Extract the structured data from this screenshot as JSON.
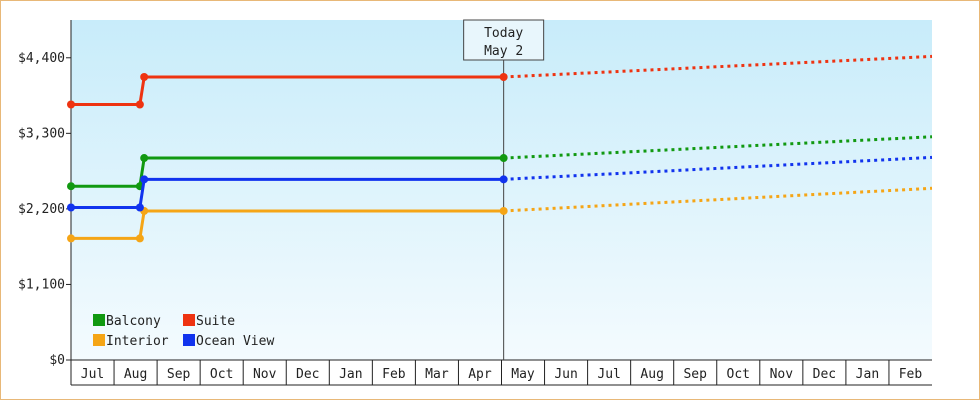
{
  "chart_data": {
    "type": "line",
    "title": "",
    "xlabel": "",
    "ylabel": "",
    "ylim": [
      0,
      4950
    ],
    "yticks": [
      0,
      1100,
      2200,
      3300,
      4400
    ],
    "ytick_labels": [
      "$0",
      "$1,100",
      "$2,200",
      "$3,300",
      "$4,400"
    ],
    "months": [
      "Jul",
      "Aug",
      "Sep",
      "Oct",
      "Nov",
      "Dec",
      "Jan",
      "Feb",
      "Mar",
      "Apr",
      "May",
      "Jun",
      "Jul",
      "Aug",
      "Sep",
      "Oct",
      "Nov",
      "Dec",
      "Jan",
      "Feb"
    ],
    "xlim": [
      -0.5,
      19.5
    ],
    "grid": false,
    "legend_position": "bottom-left",
    "background": {
      "top": "#c8ecfa",
      "bottom": "#f4fbfe"
    },
    "today": {
      "label_line1": "Today",
      "label_line2": "May 2",
      "x": 9.55
    },
    "series": [
      {
        "name": "Balcony",
        "color": "#119911",
        "history": [
          [
            -0.5,
            2530
          ],
          [
            1.1,
            2530
          ],
          [
            1.2,
            2940
          ],
          [
            9.55,
            2940
          ]
        ],
        "forecast": [
          [
            9.55,
            2940
          ],
          [
            19.5,
            3250
          ]
        ]
      },
      {
        "name": "Suite",
        "color": "#ee3311",
        "history": [
          [
            -0.5,
            3720
          ],
          [
            1.1,
            3720
          ],
          [
            1.2,
            4120
          ],
          [
            9.55,
            4120
          ]
        ],
        "forecast": [
          [
            9.55,
            4120
          ],
          [
            19.5,
            4420
          ]
        ]
      },
      {
        "name": "Interior",
        "color": "#f5a516",
        "history": [
          [
            -0.5,
            1770
          ],
          [
            1.1,
            1770
          ],
          [
            1.2,
            2170
          ],
          [
            9.55,
            2170
          ]
        ],
        "forecast": [
          [
            9.55,
            2170
          ],
          [
            19.5,
            2500
          ]
        ]
      },
      {
        "name": "Ocean View",
        "color": "#1133ee",
        "history": [
          [
            -0.5,
            2220
          ],
          [
            1.1,
            2220
          ],
          [
            1.2,
            2630
          ],
          [
            9.55,
            2630
          ]
        ],
        "forecast": [
          [
            9.55,
            2630
          ],
          [
            19.5,
            2950
          ]
        ]
      }
    ]
  }
}
